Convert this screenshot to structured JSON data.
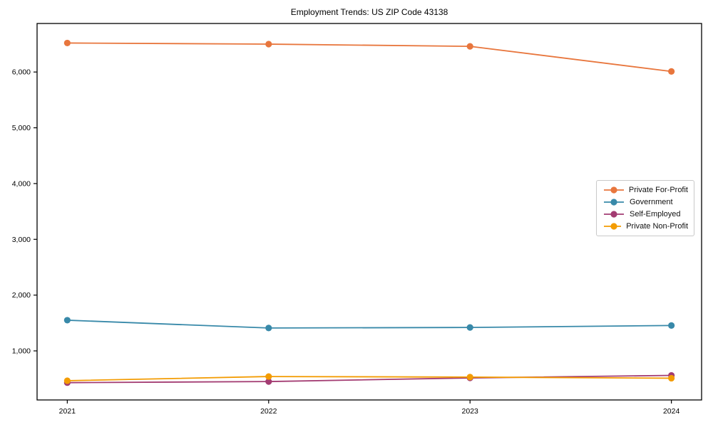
{
  "chart_data": {
    "type": "line",
    "title": "Employment Trends: US ZIP Code 43138",
    "xlabel": "",
    "ylabel": "",
    "x": [
      2021,
      2022,
      2023,
      2024
    ],
    "xtick_labels": [
      "2021",
      "2022",
      "2023",
      "2024"
    ],
    "yticks": [
      1000,
      2000,
      3000,
      4000,
      5000,
      6000
    ],
    "ytick_labels": [
      "1,000",
      "2,000",
      "3,000",
      "4,000",
      "5,000",
      "6,000"
    ],
    "xlim": [
      2020.85,
      2024.15
    ],
    "ylim": [
      120,
      6870
    ],
    "grid": false,
    "legend_position": "center right",
    "marker": "circle",
    "axis_color": "#000000",
    "background_color": "#ffffff",
    "legend_border_color": "#c9c9c9",
    "series": [
      {
        "name": "Private For-Profit",
        "color": "#e8763d",
        "values": [
          6520,
          6500,
          6460,
          6010
        ]
      },
      {
        "name": "Government",
        "color": "#3889a9",
        "values": [
          1550,
          1410,
          1420,
          1455
        ]
      },
      {
        "name": "Self-Employed",
        "color": "#a33c72",
        "values": [
          430,
          450,
          515,
          560
        ]
      },
      {
        "name": "Private Non-Profit",
        "color": "#f39c03",
        "values": [
          465,
          540,
          530,
          510
        ]
      }
    ]
  }
}
